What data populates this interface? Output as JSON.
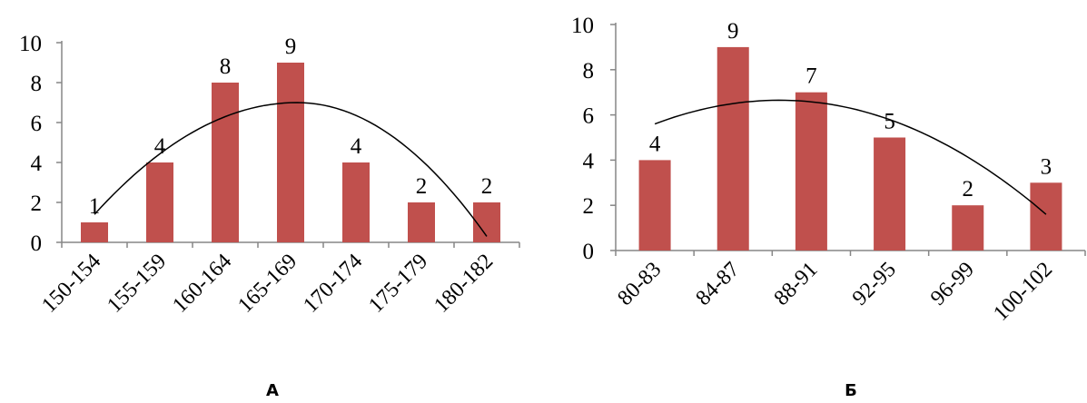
{
  "chart_data": [
    {
      "type": "bar",
      "panel_label": "А",
      "categories": [
        "150-154",
        "155-159",
        "160-164",
        "165-169",
        "170-174",
        "175-179",
        "180-182"
      ],
      "values": [
        1,
        4,
        8,
        9,
        4,
        2,
        2
      ],
      "data_labels": [
        "1",
        "4",
        "8",
        "9",
        "4",
        "2",
        "2"
      ],
      "ylim": [
        0,
        10
      ],
      "yticks": [
        0,
        2,
        4,
        6,
        8,
        10
      ],
      "bar_color": "#c0504d",
      "trendline": {
        "type": "polynomial-2",
        "y_at_first": 1.4,
        "y_at_last": 0.3,
        "peak_y": 7.0,
        "peak_index": 3.1
      },
      "grid": false,
      "legend": "none"
    },
    {
      "type": "bar",
      "panel_label": "Б",
      "categories": [
        "80-83",
        "84-87",
        "88-91",
        "92-95",
        "96-99",
        "100-102"
      ],
      "values": [
        4,
        9,
        7,
        5,
        2,
        3
      ],
      "data_labels": [
        "4",
        "9",
        "7",
        "5",
        "2",
        "3"
      ],
      "ylim": [
        0,
        10
      ],
      "yticks": [
        0,
        2,
        4,
        6,
        8,
        10
      ],
      "bar_color": "#c0504d",
      "trendline": {
        "type": "polynomial-2",
        "y_at_first": 5.6,
        "y_at_last": 1.6,
        "peak_y": 6.65,
        "peak_index": 1.6
      },
      "grid": false,
      "legend": "none"
    }
  ]
}
